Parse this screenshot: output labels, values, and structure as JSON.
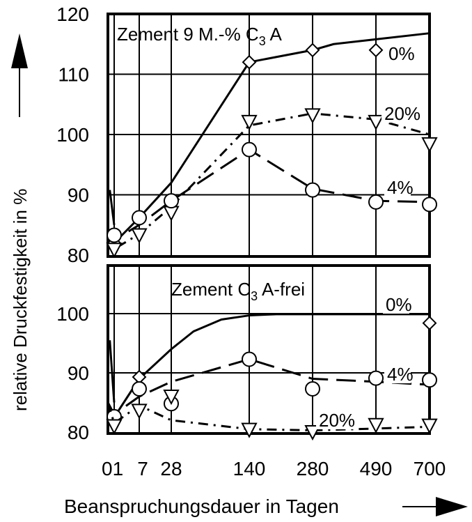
{
  "chart_data": [
    {
      "type": "line",
      "title": "Zement 9 M.-% C",
      "title_sub": "3",
      "title_suffix": " A",
      "x_tick_labels": [
        "0",
        "1",
        "7",
        "28",
        "140",
        "280",
        "490",
        "700"
      ],
      "y_ticks": [
        80,
        90,
        100,
        110,
        120
      ],
      "ylim": [
        80,
        120
      ],
      "grid": true,
      "series": [
        {
          "name": "0%",
          "marker": "diamond",
          "dash": "solid",
          "x": [
            1,
            7,
            140,
            280,
            490
          ],
          "y": [
            82,
            86.2,
            112,
            114,
            114
          ],
          "curve_x": [
            0,
            1,
            7,
            28,
            140,
            280,
            350,
            490,
            700
          ],
          "curve_y": [
            84,
            82,
            86.2,
            92,
            112,
            114,
            115,
            115.8,
            116.8
          ]
        },
        {
          "name": "20%",
          "marker": "triangle-down",
          "dash": "dashdot",
          "x": [
            1,
            7,
            28,
            140,
            280,
            490,
            700
          ],
          "y": [
            80.9,
            83.3,
            87,
            102.1,
            103.2,
            102.1,
            98.4
          ],
          "curve_x": [
            0,
            1,
            7,
            28,
            140,
            280,
            490,
            700
          ],
          "curve_y": [
            84,
            81,
            83.5,
            88,
            101.5,
            103.5,
            102.5,
            100
          ]
        },
        {
          "name": "4%",
          "marker": "circle",
          "dash": "dashed",
          "x": [
            1,
            7,
            28,
            140,
            280,
            490,
            700
          ],
          "y": [
            83.3,
            86.2,
            89,
            97.5,
            90.8,
            88.8,
            88.4
          ],
          "curve_x": [
            0,
            1,
            7,
            28,
            140,
            280,
            490,
            700
          ],
          "curve_y": [
            84,
            82.5,
            85,
            89,
            97.5,
            91,
            89,
            88.8
          ]
        }
      ],
      "spike_x": [
        0.3,
        1
      ],
      "spike_y": [
        90.8,
        85
      ]
    },
    {
      "type": "line",
      "title": "Zement C",
      "title_sub": "3",
      "title_suffix": " A-frei",
      "xlabel": "Beanspruchungsdauer in Tagen",
      "x_tick_labels": [
        "0",
        "1",
        "7",
        "28",
        "140",
        "280",
        "490",
        "700"
      ],
      "y_ticks": [
        80,
        90,
        100
      ],
      "ylim": [
        80,
        103
      ],
      "grid": true,
      "series": [
        {
          "name": "0%",
          "marker": "diamond",
          "dash": "solid",
          "x": [
            1,
            7,
            700
          ],
          "y": [
            82,
            89.3,
            98.4
          ],
          "curve_x": [
            0,
            1,
            7,
            28,
            60,
            100,
            140,
            200,
            700
          ],
          "curve_y": [
            85,
            82.5,
            89,
            94,
            97,
            99,
            99.7,
            99.9,
            99.9
          ]
        },
        {
          "name": "4%",
          "marker": "circle",
          "dash": "dashed",
          "x": [
            1,
            7,
            28,
            140,
            280,
            490,
            700
          ],
          "y": [
            82.6,
            87.3,
            84.8,
            92.3,
            87.3,
            89.1,
            88.8
          ],
          "curve_x": [
            0,
            1,
            7,
            28,
            140,
            280,
            490,
            700
          ],
          "curve_y": [
            85,
            83,
            86,
            88.5,
            92.3,
            89,
            88.5,
            88
          ]
        },
        {
          "name": "20%",
          "marker": "triangle-down",
          "dash": "dashdot",
          "x": [
            1,
            7,
            28,
            140,
            280,
            490,
            700
          ],
          "y": [
            81,
            83.6,
            86,
            80.4,
            80,
            81.2,
            81.1
          ],
          "curve_x": [
            0,
            1,
            7,
            28,
            140,
            280,
            490,
            700
          ],
          "curve_y": [
            85,
            81.5,
            84.5,
            82,
            80.5,
            80.3,
            80.6,
            80.9
          ]
        }
      ],
      "spike_x": [
        0.3,
        1
      ],
      "spike_y": [
        95.5,
        85
      ]
    }
  ],
  "ylabel": "relative Druckfestigkeit in %"
}
